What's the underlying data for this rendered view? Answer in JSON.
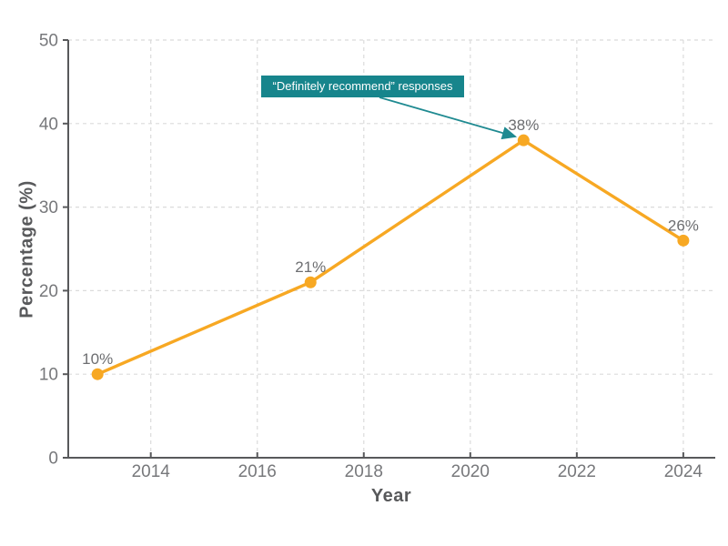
{
  "chart_data": {
    "type": "line",
    "xlabel": "Year",
    "ylabel": "Percentage (%)",
    "x": [
      2013,
      2017,
      2021,
      2024
    ],
    "series": [
      {
        "name": "Definitely recommend responses",
        "values": [
          10,
          21,
          38,
          26
        ]
      }
    ],
    "point_labels": [
      "10%",
      "21%",
      "38%",
      "26%"
    ],
    "x_ticks": [
      "2014",
      "2016",
      "2018",
      "2020",
      "2022",
      "2024"
    ],
    "x_tick_values": [
      2014,
      2016,
      2018,
      2020,
      2022,
      2024
    ],
    "y_ticks": [
      "0",
      "10",
      "20",
      "30",
      "40",
      "50"
    ],
    "y_tick_values": [
      0,
      10,
      20,
      30,
      40,
      50
    ],
    "xlim": [
      2012.45,
      2024.6
    ],
    "ylim": [
      0,
      50
    ],
    "grid": true,
    "legend_position": "none",
    "annotation": {
      "text": "“Definitely recommend” responses",
      "target_x": 2021,
      "target_y": 38
    },
    "colors": {
      "line": "#F7A823",
      "marker": "#F7A823",
      "annotation_bg": "#17858C",
      "annotation_text": "#FFFFFF",
      "arrow": "#1F8A91",
      "axis": "#58595B",
      "tick_label": "#77787B",
      "data_label": "#6D6E71",
      "axis_title": "#58595B",
      "grid": "#DBDBDB",
      "background": "#FFFFFF"
    }
  }
}
